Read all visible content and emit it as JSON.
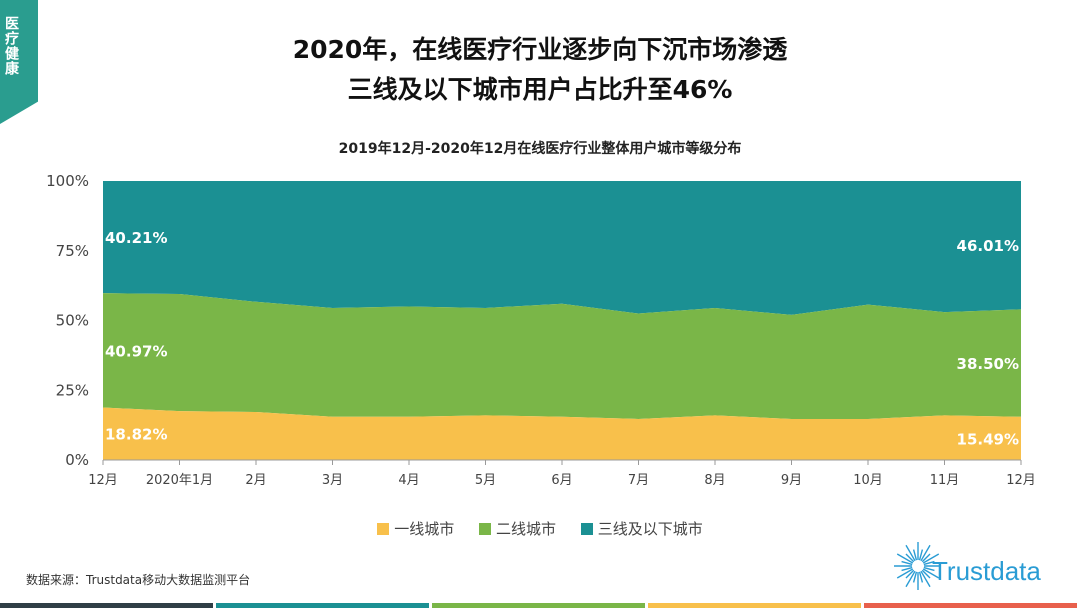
{
  "side_tab": {
    "label": "医疗健康"
  },
  "header": {
    "line1": "2020年，在线医疗行业逐步向下沉市场渗透",
    "line2": "三线及以下城市用户占比升至46%"
  },
  "source": "数据来源：Trustdata移动大数据监测平台",
  "logo": {
    "text": "Trustdata"
  },
  "colors": {
    "tier1": "#f8c04b",
    "tier2": "#7ab648",
    "tier3": "#1b9093",
    "accent": "#2a9d8f",
    "bottom_bar": [
      "#2f3e46",
      "#1b9093",
      "#7ab648",
      "#f8c04b",
      "#e8604c"
    ]
  },
  "chart_data": {
    "type": "area",
    "stacked": true,
    "title": "2019年12月-2020年12月在线医疗行业整体用户城市等级分布",
    "categories": [
      "12月",
      "2020年1月",
      "2月",
      "3月",
      "4月",
      "5月",
      "6月",
      "7月",
      "8月",
      "9月",
      "10月",
      "11月",
      "12月"
    ],
    "yticks": [
      "0%",
      "25%",
      "50%",
      "75%",
      "100%"
    ],
    "ylim": [
      0,
      100
    ],
    "series": [
      {
        "name": "一线城市",
        "values": [
          18.82,
          17.5,
          17.2,
          15.5,
          15.5,
          16.0,
          15.5,
          14.7,
          16.0,
          14.7,
          14.7,
          16.0,
          15.49
        ]
      },
      {
        "name": "二线城市",
        "values": [
          40.97,
          42.0,
          39.5,
          39.0,
          39.5,
          38.5,
          40.5,
          37.8,
          38.5,
          37.3,
          41.0,
          37.0,
          38.5
        ]
      },
      {
        "name": "三线及以下城市",
        "values": [
          40.21,
          40.5,
          43.3,
          45.5,
          45.0,
          45.5,
          44.0,
          47.5,
          45.5,
          48.0,
          44.3,
          47.0,
          46.01
        ]
      }
    ],
    "data_labels": [
      {
        "series": 0,
        "index": 0,
        "text": "18.82%"
      },
      {
        "series": 1,
        "index": 0,
        "text": "40.97%"
      },
      {
        "series": 2,
        "index": 0,
        "text": "40.21%"
      },
      {
        "series": 0,
        "index": 12,
        "text": "15.49%"
      },
      {
        "series": 1,
        "index": 12,
        "text": "38.50%"
      },
      {
        "series": 2,
        "index": 12,
        "text": "46.01%"
      }
    ],
    "legend": "bottom",
    "grid": false
  }
}
